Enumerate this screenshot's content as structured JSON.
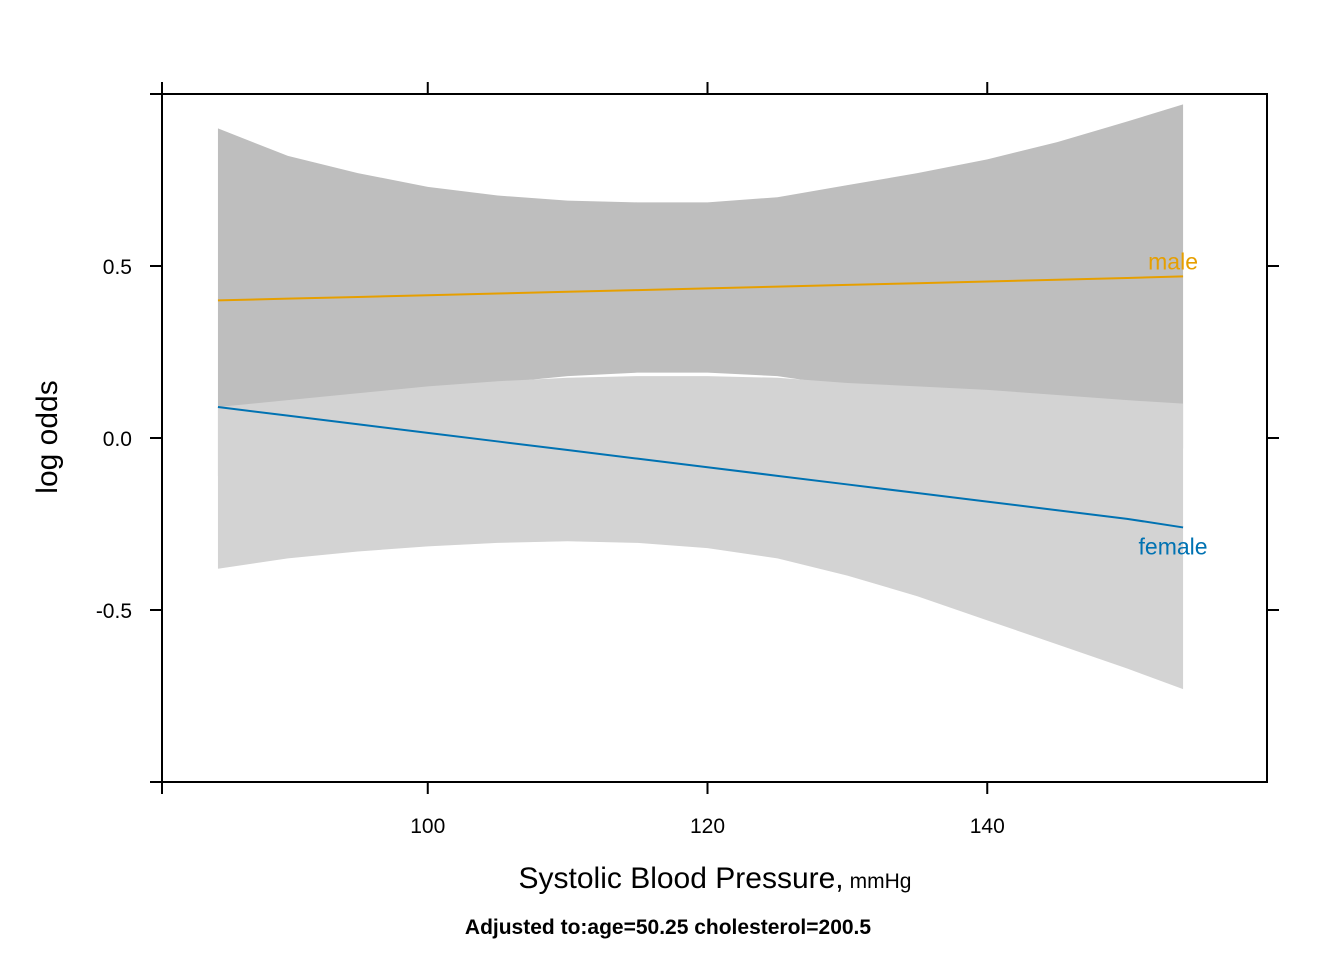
{
  "chart_data": {
    "type": "line",
    "xlabel": "Systolic Blood Pressure,",
    "xlabel_unit": "mmHg",
    "ylabel": "log odds",
    "note": "Adjusted to:age=50.25 cholesterol=200.5",
    "xlim": [
      81,
      160
    ],
    "ylim": [
      -1,
      1
    ],
    "xticks": [
      100,
      120,
      140
    ],
    "xtick_labels": [
      "100",
      "120",
      "140"
    ],
    "yticks": [
      -0.5,
      0,
      0.5
    ],
    "ytick_labels": [
      "-0.5",
      "0.0",
      "0.5"
    ],
    "grid": false,
    "legend": "labels at line ends (right)",
    "series": [
      {
        "name": "male",
        "color": "#E69F00",
        "band_color": "#bebebe",
        "x": [
          85,
          90,
          95,
          100,
          105,
          110,
          115,
          120,
          125,
          130,
          135,
          140,
          145,
          150,
          154
        ],
        "y": [
          0.4,
          0.405,
          0.41,
          0.415,
          0.42,
          0.425,
          0.43,
          0.435,
          0.44,
          0.445,
          0.45,
          0.455,
          0.46,
          0.465,
          0.47
        ],
        "lower": [
          -0.11,
          0.0,
          0.08,
          0.13,
          0.16,
          0.18,
          0.19,
          0.19,
          0.18,
          0.15,
          0.12,
          0.08,
          0.04,
          -0.01,
          -0.03
        ],
        "upper": [
          0.9,
          0.82,
          0.77,
          0.73,
          0.705,
          0.69,
          0.685,
          0.685,
          0.7,
          0.735,
          0.77,
          0.81,
          0.86,
          0.92,
          0.97
        ]
      },
      {
        "name": "female",
        "color": "#0072B2",
        "band_color": "#d3d3d3",
        "x": [
          85,
          90,
          95,
          100,
          105,
          110,
          115,
          120,
          125,
          130,
          135,
          140,
          145,
          150,
          154
        ],
        "y": [
          0.09,
          0.065,
          0.04,
          0.015,
          -0.01,
          -0.035,
          -0.06,
          -0.085,
          -0.11,
          -0.135,
          -0.16,
          -0.185,
          -0.21,
          -0.235,
          -0.26
        ],
        "lower": [
          -0.38,
          -0.35,
          -0.33,
          -0.315,
          -0.305,
          -0.3,
          -0.305,
          -0.32,
          -0.35,
          -0.4,
          -0.46,
          -0.53,
          -0.6,
          -0.67,
          -0.73
        ],
        "upper": [
          0.09,
          0.11,
          0.13,
          0.15,
          0.165,
          0.175,
          0.18,
          0.18,
          0.175,
          0.16,
          0.15,
          0.14,
          0.125,
          0.11,
          0.1
        ]
      }
    ]
  }
}
